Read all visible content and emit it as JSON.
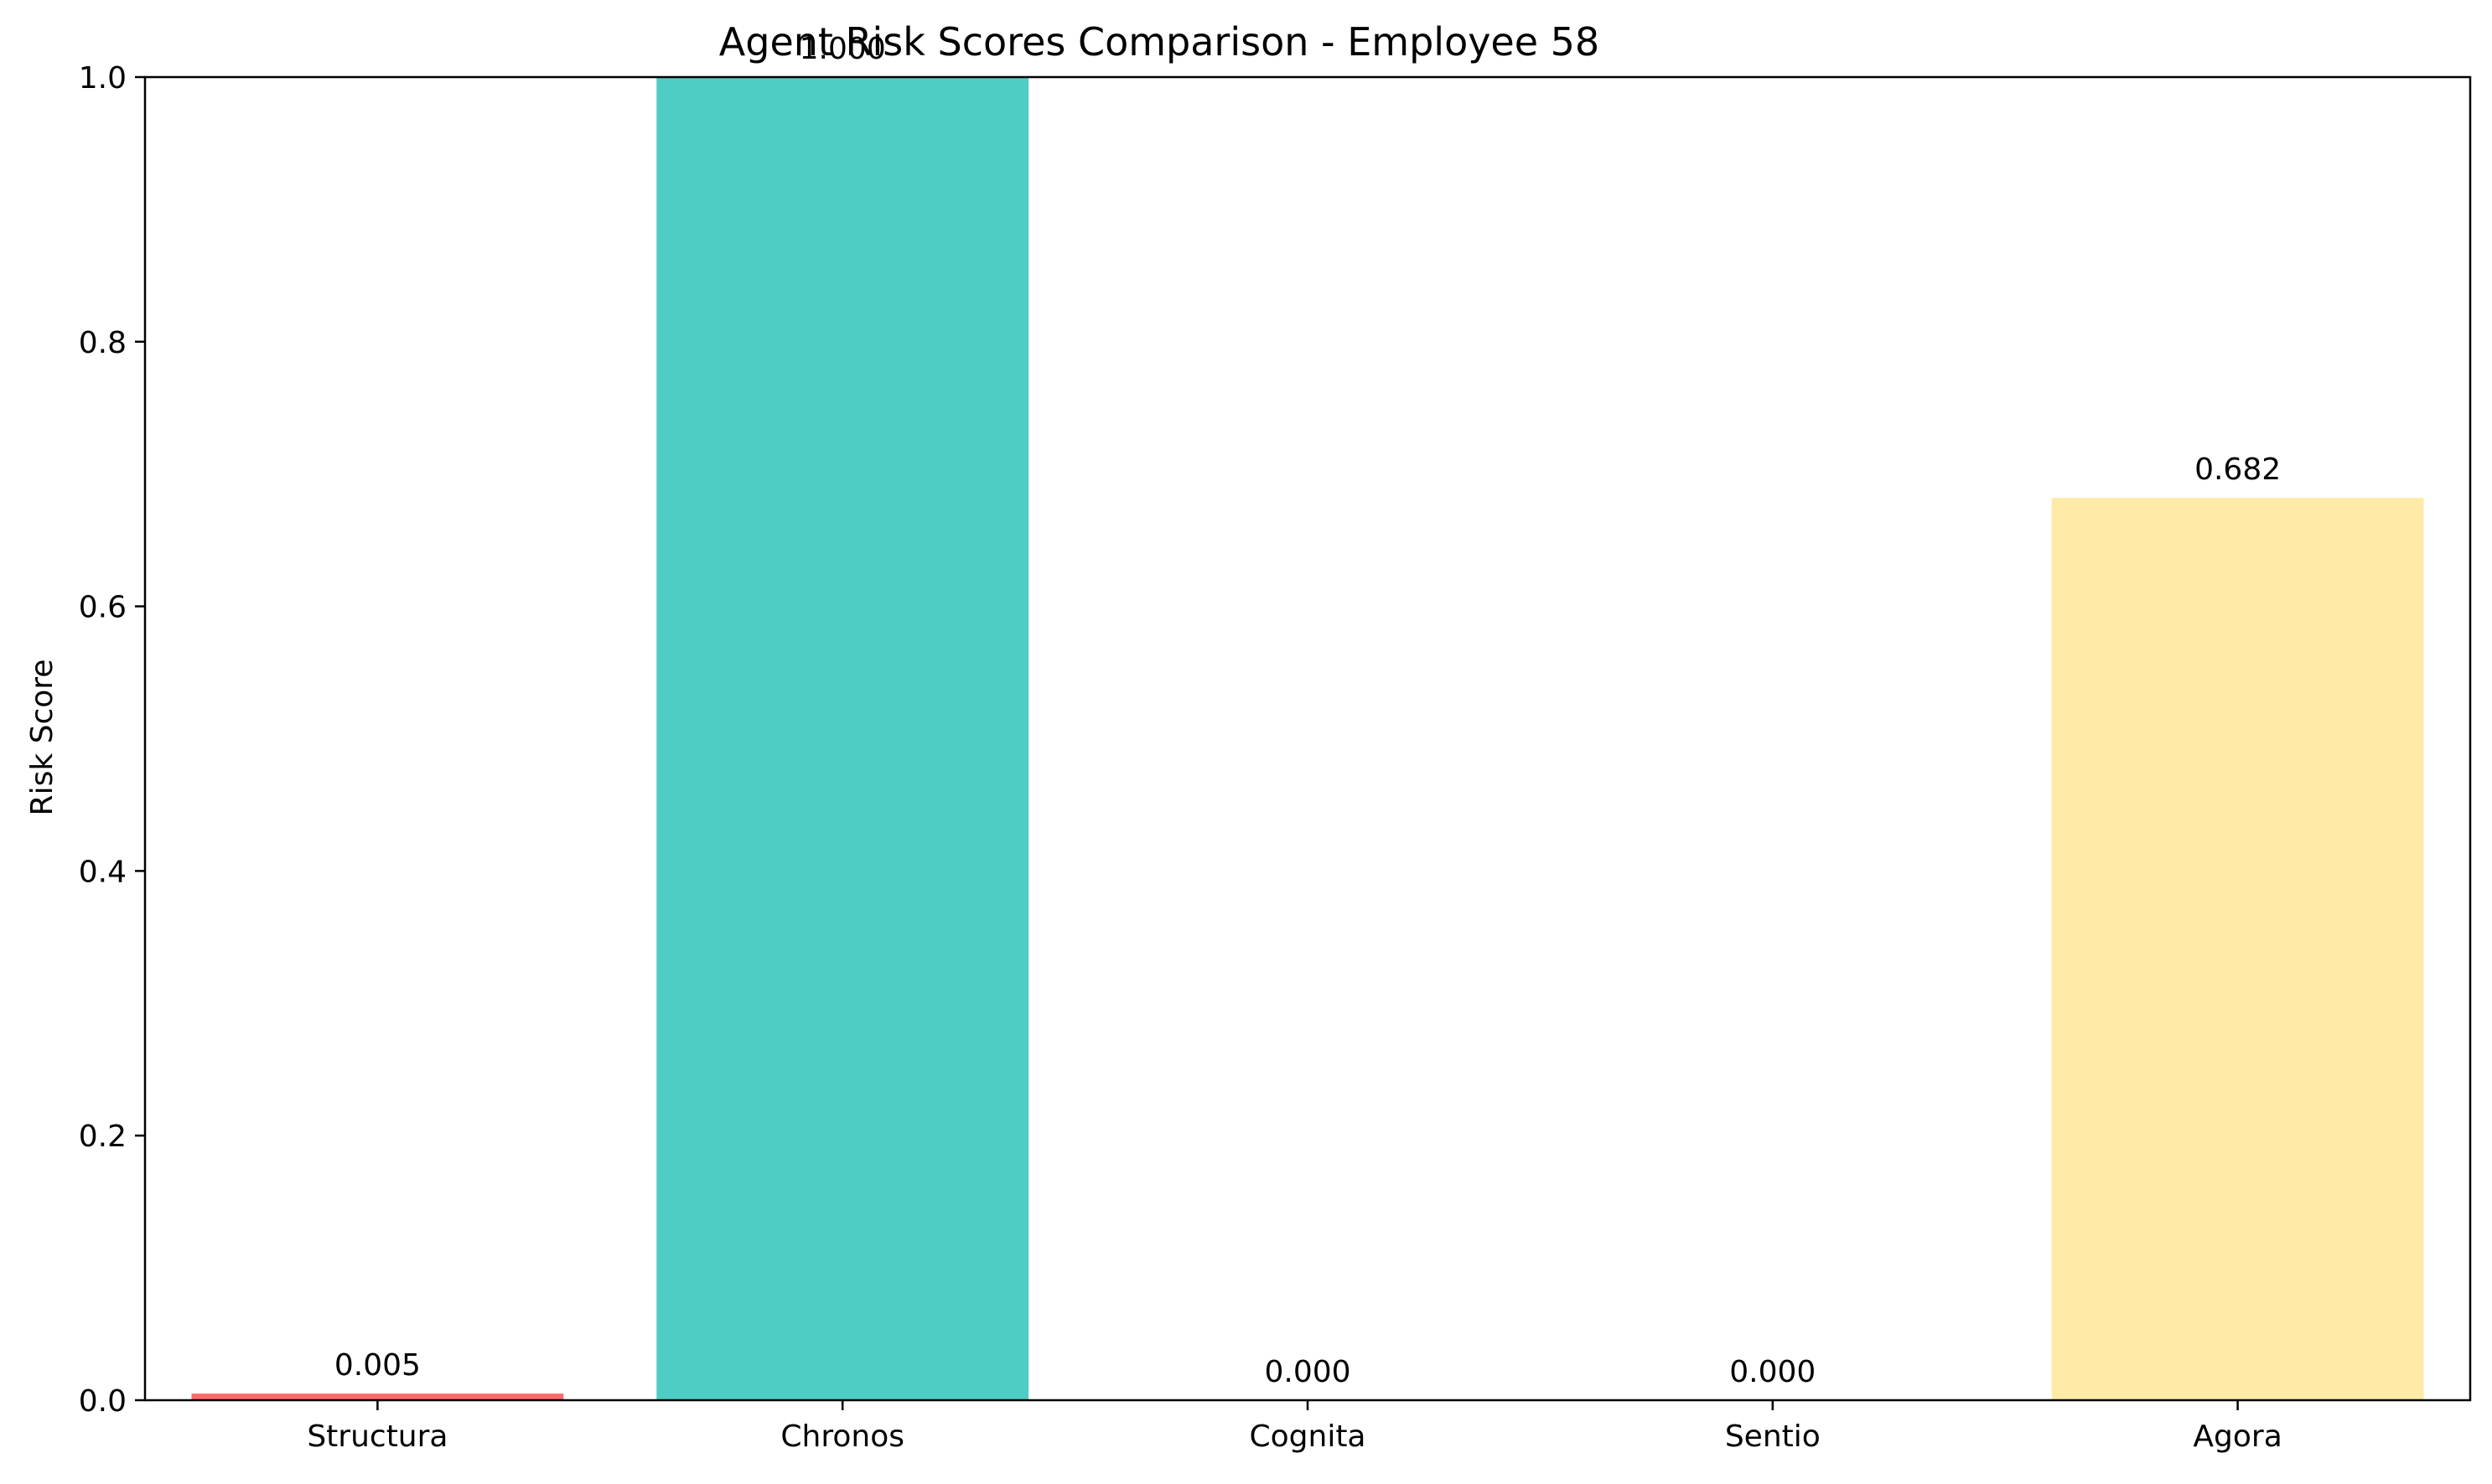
{
  "chart_data": {
    "type": "bar",
    "title": "Agent Risk Scores Comparison - Employee 58",
    "xlabel": "",
    "ylabel": "Risk Score",
    "categories": [
      "Structura",
      "Chronos",
      "Cognita",
      "Sentio",
      "Agora"
    ],
    "values": [
      0.005,
      1.0,
      0.0,
      0.0,
      0.682
    ],
    "value_labels": [
      "0.005",
      "1.000",
      "0.000",
      "0.000",
      "0.682"
    ],
    "colors": [
      "#ff6b6b",
      "#4ecdc4",
      "#45b7d1",
      "#96ceb4",
      "#ffeaa7"
    ],
    "ylim": [
      0,
      1.0
    ],
    "yticks": [
      0.0,
      0.2,
      0.4,
      0.6,
      0.8,
      1.0
    ],
    "ytick_labels": [
      "0.0",
      "0.2",
      "0.4",
      "0.6",
      "0.8",
      "1.0"
    ],
    "grid": false,
    "legend": "none"
  }
}
